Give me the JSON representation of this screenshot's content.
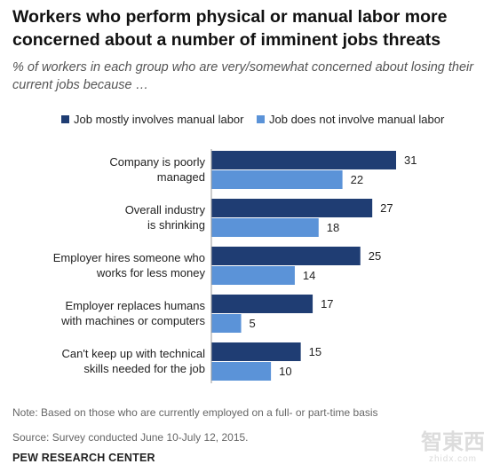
{
  "title": "Workers who perform physical or manual labor more concerned about a number of imminent jobs threats",
  "subtitle": "% of workers in each group who are very/somewhat concerned about losing their current jobs because …",
  "note": "Note: Based on those who are currently employed on a full- or part-time basis",
  "source": "Source: Survey conducted June 10-July 12, 2015.",
  "organization": "PEW RESEARCH CENTER",
  "watermark": {
    "main": "智東西",
    "sub": "zhidx.com"
  },
  "colors": {
    "manual": "#1f3d73",
    "non_manual": "#5b93d8",
    "text": "#222222"
  },
  "chart_data": {
    "type": "bar",
    "orientation": "horizontal",
    "categories": [
      [
        "Company is poorly",
        "managed"
      ],
      [
        "Overall industry",
        "is shrinking"
      ],
      [
        "Employer hires someone  who",
        "works for less money"
      ],
      [
        "Employer replaces humans",
        "with machines or computers"
      ],
      [
        "Can't keep up with technical",
        "skills needed for the job"
      ]
    ],
    "series": [
      {
        "name": "Job mostly involves manual labor",
        "values": [
          31,
          27,
          25,
          17,
          15
        ],
        "color": "#1f3d73"
      },
      {
        "name": "Job does not involve manual labor",
        "values": [
          22,
          18,
          14,
          5,
          10
        ],
        "color": "#5b93d8"
      }
    ],
    "xlim": [
      0,
      31
    ],
    "legend_position": "top",
    "grid": false,
    "xlabel": "",
    "ylabel": ""
  }
}
